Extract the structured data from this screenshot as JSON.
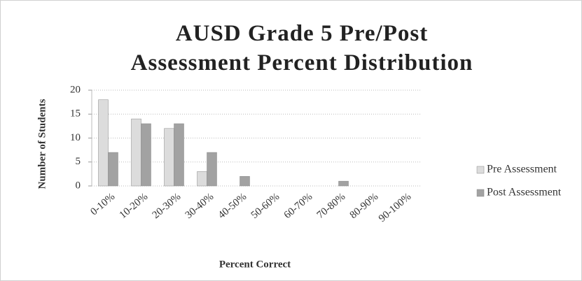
{
  "chart_data": {
    "type": "bar",
    "title": "AUSD Grade 5 Pre/Post\nAssessment Percent Distribution",
    "x_label": "Percent Correct",
    "y_label": "Number of Students",
    "categories": [
      "0-10%",
      "10-20%",
      "20-30%",
      "30-40%",
      "40-50%",
      "50-60%",
      "60-70%",
      "70-80%",
      "80-90%",
      "90-100%"
    ],
    "series": [
      {
        "name": "Pre Assessment",
        "color": "#dcdcdc",
        "values": [
          18,
          14,
          12,
          3,
          0,
          0,
          0,
          0,
          0,
          0
        ]
      },
      {
        "name": "Post Assessment",
        "color": "#a2a2a2",
        "values": [
          7,
          13,
          13,
          7,
          2,
          0,
          0,
          1,
          0,
          0
        ]
      }
    ],
    "ylim": [
      0,
      20
    ],
    "yticks": [
      0,
      5,
      10,
      15,
      20
    ],
    "grid": true,
    "legend": "right"
  }
}
